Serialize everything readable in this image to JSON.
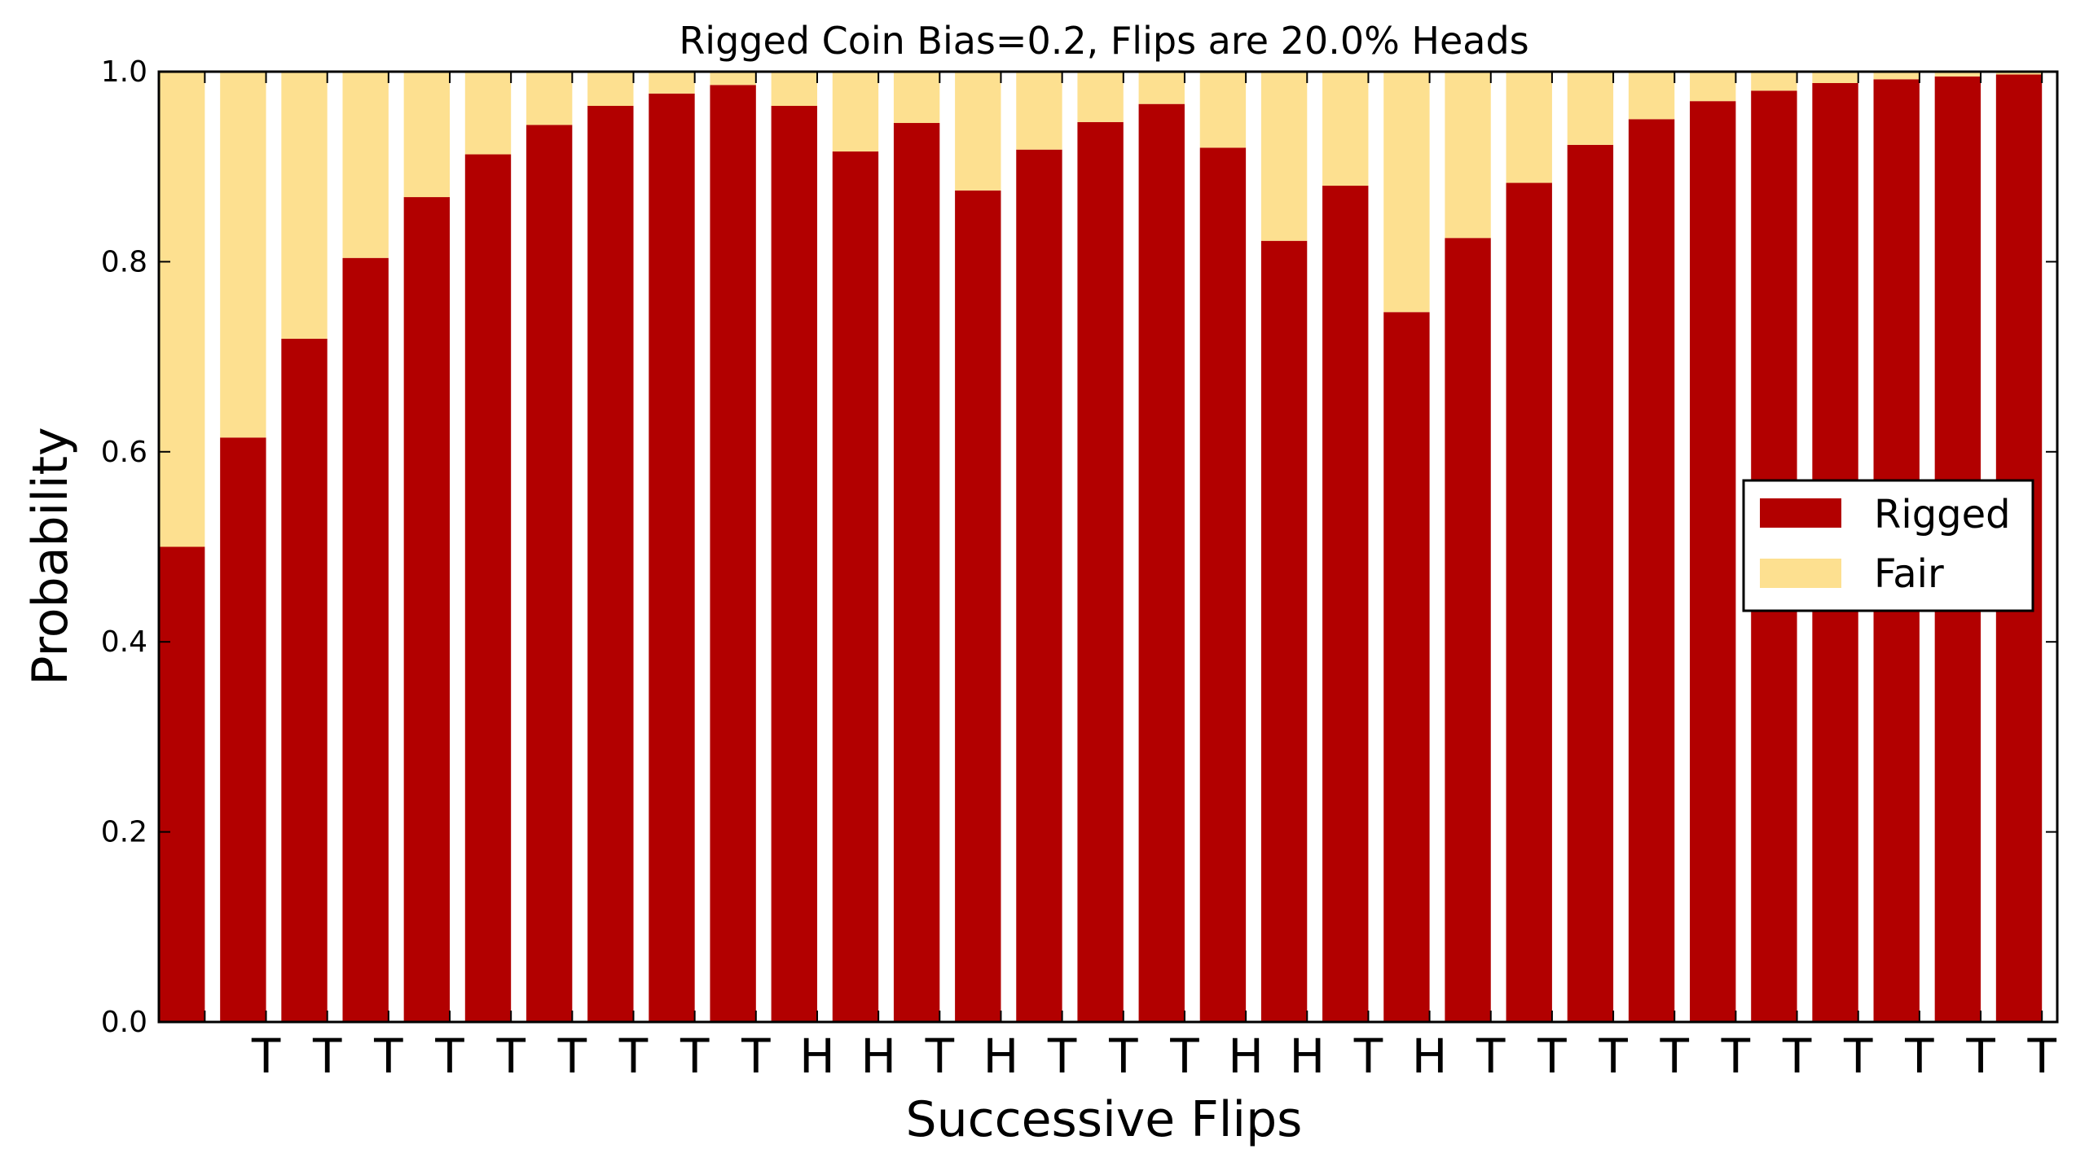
{
  "chart_data": {
    "type": "bar",
    "stacked": true,
    "title": "Rigged Coin Bias=0.2, Flips are 20.0% Heads",
    "xlabel": "Successive Flips",
    "ylabel": "Probability",
    "ylim": [
      0,
      1.0
    ],
    "yticks": [
      "0.0",
      "0.2",
      "0.4",
      "0.6",
      "0.8",
      "1.0"
    ],
    "categories": [
      "",
      "T",
      "T",
      "T",
      "T",
      "T",
      "T",
      "T",
      "T",
      "T",
      "H",
      "H",
      "T",
      "H",
      "T",
      "T",
      "T",
      "H",
      "H",
      "T",
      "H",
      "T",
      "T",
      "T",
      "T",
      "T",
      "T",
      "T",
      "T",
      "T",
      "T"
    ],
    "series": [
      {
        "name": "Rigged",
        "color": "#b20000",
        "values": [
          0.5,
          0.615,
          0.719,
          0.804,
          0.868,
          0.913,
          0.944,
          0.964,
          0.977,
          0.986,
          0.964,
          0.916,
          0.946,
          0.875,
          0.918,
          0.947,
          0.966,
          0.92,
          0.822,
          0.88,
          0.747,
          0.825,
          0.883,
          0.923,
          0.95,
          0.969,
          0.98,
          0.988,
          0.992,
          0.995,
          0.997
        ]
      },
      {
        "name": "Fair",
        "color": "#fde090",
        "values": [
          0.5,
          0.385,
          0.281,
          0.196,
          0.132,
          0.087,
          0.056,
          0.036,
          0.023,
          0.014,
          0.036,
          0.084,
          0.054,
          0.125,
          0.082,
          0.053,
          0.034,
          0.08,
          0.178,
          0.12,
          0.253,
          0.175,
          0.117,
          0.077,
          0.05,
          0.031,
          0.02,
          0.012,
          0.008,
          0.005,
          0.003
        ]
      }
    ],
    "legend": {
      "position": "center-right"
    }
  }
}
